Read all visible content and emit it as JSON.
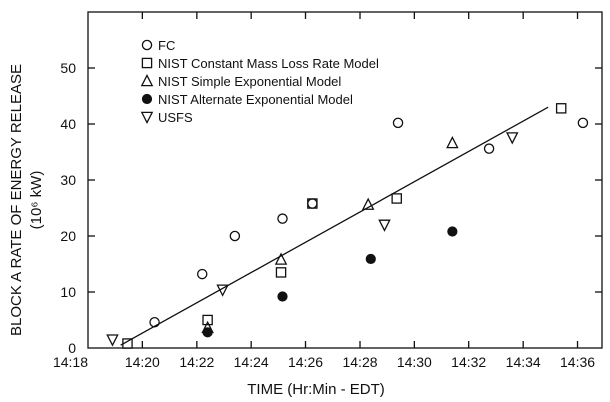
{
  "chart_data": {
    "type": "scatter",
    "title": "",
    "xlabel": "TIME (Hr:Min - EDT)",
    "ylabel_line1": "BLOCK A RATE OF ENERGY RELEASE",
    "ylabel_line2": "(10⁶ kW)",
    "xlim": [
      14.3,
      14.615
    ],
    "ylim": [
      0,
      60
    ],
    "grid": false,
    "legend_position": "top-left",
    "x_ticks": [
      {
        "value": 14.3333,
        "label": "14:20"
      },
      {
        "value": 14.3667,
        "label": "14:22"
      },
      {
        "value": 14.4,
        "label": "14:24"
      },
      {
        "value": 14.4333,
        "label": "14:26"
      },
      {
        "value": 14.4667,
        "label": "14:28"
      },
      {
        "value": 14.5,
        "label": "14:30"
      },
      {
        "value": 14.5333,
        "label": "14:32"
      },
      {
        "value": 14.5667,
        "label": "14:34"
      },
      {
        "value": 14.6,
        "label": "14:36"
      }
    ],
    "x_leading_label": {
      "label": "14:18"
    },
    "y_ticks": [
      {
        "value": 0,
        "label": "0"
      },
      {
        "value": 10,
        "label": "10"
      },
      {
        "value": 20,
        "label": "20"
      },
      {
        "value": 30,
        "label": "30"
      },
      {
        "value": 40,
        "label": "40"
      },
      {
        "value": 50,
        "label": "50"
      }
    ],
    "series": [
      {
        "name": "FC",
        "marker": "circle-open",
        "points": [
          {
            "x": 14.3408,
            "y": 4.6
          },
          {
            "x": 14.37,
            "y": 13.2
          },
          {
            "x": 14.39,
            "y": 20.0
          },
          {
            "x": 14.4192,
            "y": 23.1
          },
          {
            "x": 14.4375,
            "y": 25.8
          },
          {
            "x": 14.49,
            "y": 40.2
          },
          {
            "x": 14.5458,
            "y": 35.6
          },
          {
            "x": 14.6033,
            "y": 40.2
          }
        ]
      },
      {
        "name": "NIST Constant Mass Loss Rate Model",
        "marker": "square-open",
        "points": [
          {
            "x": 14.3242,
            "y": 0.8
          },
          {
            "x": 14.3733,
            "y": 5.0
          },
          {
            "x": 14.4183,
            "y": 13.5
          },
          {
            "x": 14.4375,
            "y": 25.8
          },
          {
            "x": 14.4892,
            "y": 26.7
          },
          {
            "x": 14.59,
            "y": 42.8
          }
        ]
      },
      {
        "name": "NIST Simple Exponential Model",
        "marker": "triangle-up-open",
        "points": [
          {
            "x": 14.3733,
            "y": 3.6
          },
          {
            "x": 14.4183,
            "y": 15.8
          },
          {
            "x": 14.4717,
            "y": 25.6
          },
          {
            "x": 14.5233,
            "y": 36.6
          }
        ]
      },
      {
        "name": "NIST Alternate Exponential Model",
        "marker": "circle-filled",
        "points": [
          {
            "x": 14.3733,
            "y": 2.8
          },
          {
            "x": 14.4192,
            "y": 9.2
          },
          {
            "x": 14.4733,
            "y": 15.9
          },
          {
            "x": 14.5233,
            "y": 20.8
          }
        ]
      },
      {
        "name": "USFS",
        "marker": "triangle-down-open",
        "points": [
          {
            "x": 14.315,
            "y": 1.5
          },
          {
            "x": 14.3825,
            "y": 10.4
          },
          {
            "x": 14.4817,
            "y": 22.0
          },
          {
            "x": 14.56,
            "y": 37.6
          }
        ]
      }
    ],
    "trend_line": {
      "x": [
        14.32,
        14.582
      ],
      "y": [
        0.5,
        43.0
      ]
    }
  }
}
